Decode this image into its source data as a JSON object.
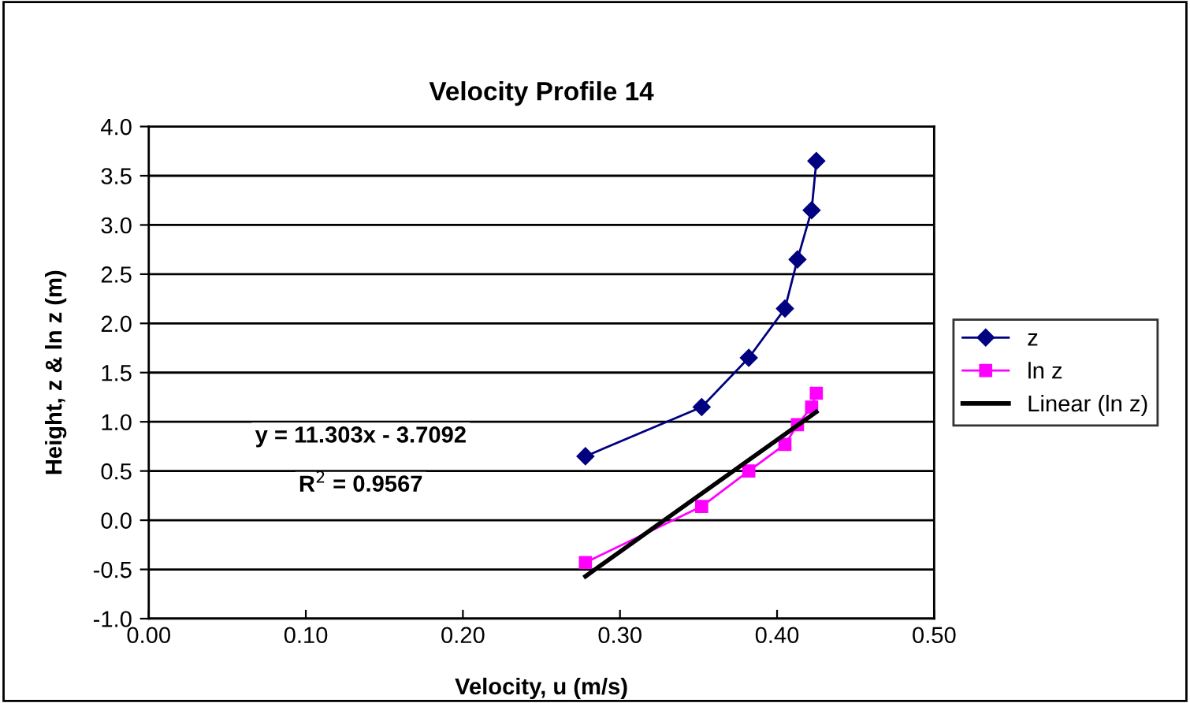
{
  "chart_data": {
    "type": "line",
    "title": "Velocity Profile 14",
    "xlabel": "Velocity, u (m/s)",
    "ylabel": "Height, z & ln z (m)",
    "series": [
      {
        "name": "z",
        "color": "#000080",
        "marker": "diamond",
        "x": [
          0.278,
          0.352,
          0.382,
          0.405,
          0.413,
          0.422,
          0.425
        ],
        "values": [
          0.65,
          1.15,
          1.65,
          2.15,
          2.65,
          3.15,
          3.65
        ]
      },
      {
        "name": "ln z",
        "color": "#ff00ff",
        "marker": "square",
        "x": [
          0.278,
          0.352,
          0.382,
          0.405,
          0.413,
          0.422,
          0.425
        ],
        "values": [
          -0.43,
          0.14,
          0.5,
          0.77,
          0.97,
          1.15,
          1.29
        ]
      },
      {
        "name": "Linear (ln z)",
        "color": "#000000",
        "marker": "none",
        "x": [
          0.278,
          0.425
        ],
        "values": [
          -0.57,
          1.1
        ]
      }
    ],
    "annotations": [
      "y = 11.303x - 3.7092",
      "R$^{2}$ = 0.9567"
    ],
    "xlim": [
      0,
      0.5
    ],
    "xticks": [
      {
        "value": 0,
        "label": "0.00"
      },
      {
        "value": 0.1,
        "label": "0.10"
      },
      {
        "value": 0.2,
        "label": "0.20"
      },
      {
        "value": 0.3,
        "label": "0.30"
      },
      {
        "value": 0.4,
        "label": "0.40"
      },
      {
        "value": 0.5,
        "label": "0.50"
      }
    ],
    "ylim": [
      -1,
      4
    ],
    "yticks": [
      {
        "value": -1,
        "label": "-1.0"
      },
      {
        "value": -0.5,
        "label": "-0.5"
      },
      {
        "value": 0,
        "label": "0.0"
      },
      {
        "value": 0.5,
        "label": "0.5"
      },
      {
        "value": 1,
        "label": "1.0"
      },
      {
        "value": 1.5,
        "label": "1.5"
      },
      {
        "value": 2,
        "label": "2.0"
      },
      {
        "value": 2.5,
        "label": "2.5"
      },
      {
        "value": 3,
        "label": "3.0"
      },
      {
        "value": 3.5,
        "label": "3.5"
      },
      {
        "value": 4,
        "label": "4.0"
      }
    ],
    "grid": "y",
    "legend": "right",
    "line_style": "solid"
  }
}
